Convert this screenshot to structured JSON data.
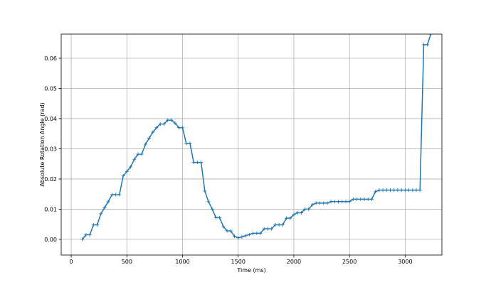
{
  "chart_data": {
    "type": "line",
    "title": "",
    "xlabel": "Time (ms)",
    "ylabel": "Absolute Rotation Angle (rad)",
    "xlim": [
      -90,
      3330
    ],
    "ylim": [
      -0.0052,
      0.068
    ],
    "xticks": [
      0,
      500,
      1000,
      1500,
      2000,
      2500,
      3000
    ],
    "yticks": [
      0.0,
      0.01,
      0.02,
      0.03,
      0.04,
      0.05,
      0.06
    ],
    "ytick_labels": [
      "0.00",
      "0.01",
      "0.02",
      "0.03",
      "0.04",
      "0.05",
      "0.06"
    ],
    "grid": true,
    "line_color": "#1f77b4",
    "marker": "plus",
    "series": [
      {
        "x": [
          100,
          133,
          167,
          200,
          233,
          267,
          300,
          333,
          367,
          400,
          433,
          467,
          500,
          533,
          567,
          600,
          633,
          667,
          700,
          733,
          767,
          800,
          833,
          867,
          900,
          933,
          967,
          1000,
          1033,
          1067,
          1100,
          1133,
          1167,
          1200,
          1233,
          1267,
          1300,
          1333,
          1367,
          1400,
          1433,
          1467,
          1500,
          1533,
          1567,
          1600,
          1633,
          1667,
          1700,
          1733,
          1767,
          1800,
          1833,
          1867,
          1900,
          1933,
          1967,
          2000,
          2033,
          2067,
          2100,
          2133,
          2167,
          2200,
          2233,
          2267,
          2300,
          2333,
          2367,
          2400,
          2433,
          2467,
          2500,
          2533,
          2567,
          2600,
          2633,
          2667,
          2700,
          2733,
          2767,
          2800,
          2833,
          2867,
          2900,
          2933,
          2967,
          3000,
          3033,
          3067,
          3100,
          3133,
          3167,
          3200,
          3230
        ],
        "y": [
          0.0,
          0.0015,
          0.0015,
          0.0048,
          0.0048,
          0.0085,
          0.0105,
          0.0125,
          0.0148,
          0.0148,
          0.0148,
          0.021,
          0.0225,
          0.024,
          0.0265,
          0.0282,
          0.0282,
          0.0315,
          0.0335,
          0.0355,
          0.037,
          0.0382,
          0.0382,
          0.0395,
          0.0395,
          0.0385,
          0.037,
          0.037,
          0.0318,
          0.0318,
          0.0255,
          0.0255,
          0.0255,
          0.016,
          0.0125,
          0.01,
          0.0072,
          0.0072,
          0.0042,
          0.0028,
          0.0028,
          0.001,
          0.0005,
          0.0008,
          0.0012,
          0.0016,
          0.002,
          0.002,
          0.002,
          0.0035,
          0.0035,
          0.0035,
          0.0048,
          0.0048,
          0.0048,
          0.007,
          0.007,
          0.0082,
          0.0088,
          0.0088,
          0.01,
          0.01,
          0.0115,
          0.012,
          0.012,
          0.012,
          0.012,
          0.0125,
          0.0125,
          0.0125,
          0.0125,
          0.0125,
          0.0125,
          0.0133,
          0.0133,
          0.0133,
          0.0133,
          0.0133,
          0.0133,
          0.0158,
          0.0163,
          0.0163,
          0.0163,
          0.0163,
          0.0163,
          0.0163,
          0.0163,
          0.0163,
          0.0163,
          0.0163,
          0.0163,
          0.0163,
          0.0645,
          0.0645,
          0.068
        ]
      }
    ]
  }
}
